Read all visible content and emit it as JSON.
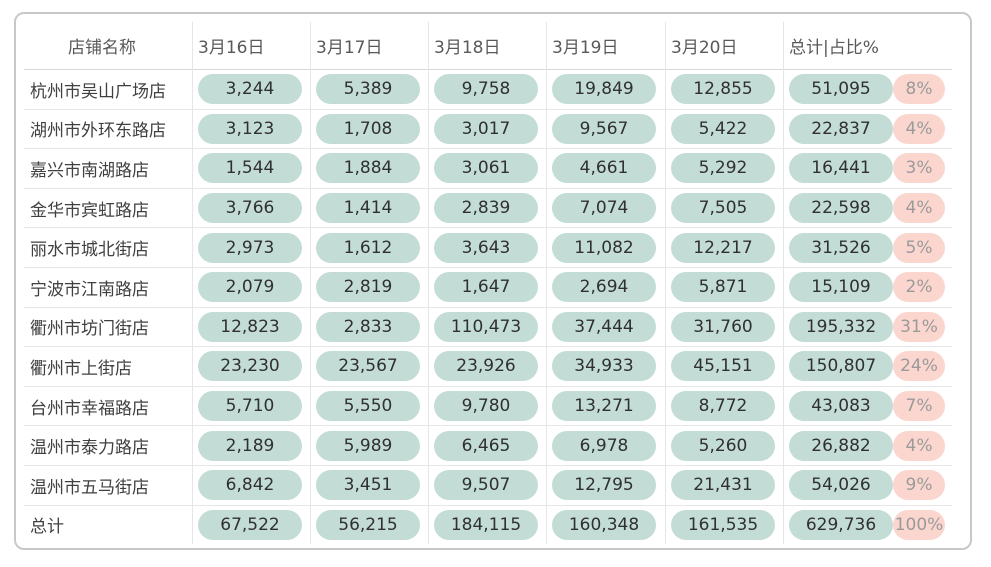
{
  "chart_data": {
    "type": "table",
    "columns": [
      "店铺名称",
      "3月16日",
      "3月17日",
      "3月18日",
      "3月19日",
      "3月20日",
      "总计|占比%"
    ],
    "rows": [
      {
        "name": "杭州市吴山广场店",
        "values": [
          "3,244",
          "5,389",
          "9,758",
          "19,849",
          "12,855",
          "51,095"
        ],
        "pct": "8%"
      },
      {
        "name": "湖州市外环东路店",
        "values": [
          "3,123",
          "1,708",
          "3,017",
          "9,567",
          "5,422",
          "22,837"
        ],
        "pct": "4%"
      },
      {
        "name": "嘉兴市南湖路店",
        "values": [
          "1,544",
          "1,884",
          "3,061",
          "4,661",
          "5,292",
          "16,441"
        ],
        "pct": "3%"
      },
      {
        "name": "金华市宾虹路店",
        "values": [
          "3,766",
          "1,414",
          "2,839",
          "7,074",
          "7,505",
          "22,598"
        ],
        "pct": "4%"
      },
      {
        "name": "丽水市城北街店",
        "values": [
          "2,973",
          "1,612",
          "3,643",
          "11,082",
          "12,217",
          "31,526"
        ],
        "pct": "5%"
      },
      {
        "name": "宁波市江南路店",
        "values": [
          "2,079",
          "2,819",
          "1,647",
          "2,694",
          "5,871",
          "15,109"
        ],
        "pct": "2%"
      },
      {
        "name": "衢州市坊门街店",
        "values": [
          "12,823",
          "2,833",
          "110,473",
          "37,444",
          "31,760",
          "195,332"
        ],
        "pct": "31%"
      },
      {
        "name": "衢州市上街店",
        "values": [
          "23,230",
          "23,567",
          "23,926",
          "34,933",
          "45,151",
          "150,807"
        ],
        "pct": "24%"
      },
      {
        "name": "台州市幸福路店",
        "values": [
          "5,710",
          "5,550",
          "9,780",
          "13,271",
          "8,772",
          "43,083"
        ],
        "pct": "7%"
      },
      {
        "name": "温州市泰力路店",
        "values": [
          "2,189",
          "5,989",
          "6,465",
          "6,978",
          "5,260",
          "26,882"
        ],
        "pct": "4%"
      },
      {
        "name": "温州市五马街店",
        "values": [
          "6,842",
          "3,451",
          "9,507",
          "12,795",
          "21,431",
          "54,026"
        ],
        "pct": "9%"
      }
    ],
    "total": {
      "name": "总计",
      "values": [
        "67,522",
        "56,215",
        "184,115",
        "160,348",
        "161,535",
        "629,736"
      ],
      "pct": "100%"
    },
    "colors": {
      "value_pill": "#c3ddd6",
      "pct_pill": "#fbd6cf",
      "pct_text": "#9a9a9a",
      "frame": "#c8c8c8"
    }
  }
}
